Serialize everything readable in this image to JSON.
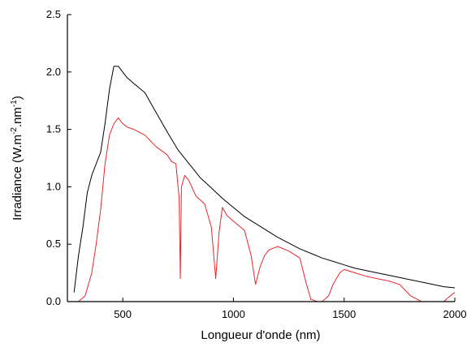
{
  "chart_data": {
    "type": "line",
    "title": "",
    "xlabel": "Longueur d'onde (nm)",
    "ylabel": {
      "prefix": "Irradiance (W.m",
      "sup1": "-2",
      "middle": ".nm",
      "sup2": "-1",
      "suffix": ")"
    },
    "xlim": [
      250,
      2000
    ],
    "ylim": [
      0,
      2.5
    ],
    "x_ticks": [
      500,
      1000,
      1500,
      2000
    ],
    "y_ticks": [
      0.0,
      0.5,
      1.0,
      1.5,
      2.0,
      2.5
    ],
    "x_tick_labels": [
      "500",
      "1000",
      "1500",
      "2000"
    ],
    "y_tick_labels": [
      "0.0",
      "0.5",
      "1.0",
      "1.5",
      "2.0",
      "2.5"
    ],
    "grid": false,
    "legend": "none",
    "series": [
      {
        "color": "#000000",
        "x": [
          280,
          300,
          320,
          340,
          360,
          380,
          400,
          420,
          440,
          460,
          480,
          500,
          520,
          550,
          600,
          650,
          700,
          750,
          800,
          850,
          900,
          950,
          1000,
          1050,
          1100,
          1150,
          1200,
          1250,
          1300,
          1350,
          1400,
          1450,
          1500,
          1550,
          1600,
          1650,
          1700,
          1750,
          1800,
          1850,
          1900,
          1950,
          2000
        ],
        "y": [
          0.08,
          0.4,
          0.65,
          0.95,
          1.1,
          1.2,
          1.3,
          1.55,
          1.85,
          2.05,
          2.05,
          2.0,
          1.95,
          1.9,
          1.82,
          1.65,
          1.48,
          1.32,
          1.2,
          1.08,
          0.99,
          0.9,
          0.82,
          0.74,
          0.68,
          0.62,
          0.56,
          0.51,
          0.46,
          0.42,
          0.38,
          0.35,
          0.32,
          0.29,
          0.27,
          0.25,
          0.23,
          0.21,
          0.19,
          0.17,
          0.15,
          0.13,
          0.12
        ]
      },
      {
        "color": "#e8262a",
        "x": [
          300,
          330,
          360,
          380,
          400,
          420,
          440,
          460,
          480,
          500,
          520,
          550,
          600,
          650,
          700,
          720,
          740,
          755,
          760,
          765,
          780,
          800,
          830,
          870,
          900,
          920,
          935,
          950,
          970,
          1000,
          1050,
          1080,
          1100,
          1120,
          1140,
          1160,
          1200,
          1250,
          1300,
          1330,
          1350,
          1380,
          1400,
          1430,
          1450,
          1480,
          1500,
          1550,
          1600,
          1650,
          1700,
          1750,
          1800,
          1850,
          1900,
          1950,
          1980,
          2000
        ],
        "y": [
          0.0,
          0.05,
          0.25,
          0.5,
          0.8,
          1.2,
          1.45,
          1.55,
          1.6,
          1.55,
          1.52,
          1.5,
          1.45,
          1.35,
          1.28,
          1.22,
          1.2,
          0.9,
          0.2,
          1.0,
          1.1,
          1.05,
          0.92,
          0.85,
          0.65,
          0.2,
          0.6,
          0.82,
          0.75,
          0.7,
          0.62,
          0.4,
          0.15,
          0.3,
          0.4,
          0.45,
          0.48,
          0.44,
          0.38,
          0.15,
          0.02,
          0.0,
          0.0,
          0.05,
          0.15,
          0.25,
          0.28,
          0.25,
          0.22,
          0.2,
          0.18,
          0.15,
          0.05,
          0.0,
          0.0,
          0.0,
          0.05,
          0.08
        ]
      }
    ]
  }
}
